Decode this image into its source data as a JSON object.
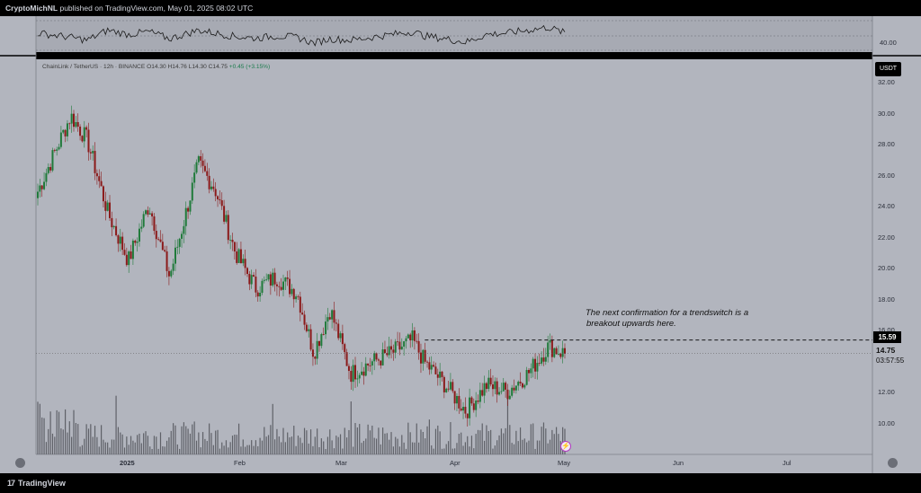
{
  "header": {
    "author": "CryptoMichNL",
    "published_text": "published on TradingView.com, May 01, 2025 08:02 UTC"
  },
  "legend": {
    "symbol": "ChainLink / TetherUS · 12h · BINANCE",
    "open": "O14.30",
    "high": "H14.76",
    "low": "L14.30",
    "close": "C14.75",
    "change": "+0.45 (+3.15%)"
  },
  "annotation": {
    "line1": "The next confirmation for a trendswitch is a",
    "line2": "breakout upwards here."
  },
  "price_scale": {
    "currency": "USDT",
    "labels": [
      "32.00",
      "30.00",
      "28.00",
      "26.00",
      "24.00",
      "22.00",
      "20.00",
      "18.00",
      "16.00",
      "12.00",
      "10.00"
    ],
    "level_tag": "15.59",
    "current_price": "14.75",
    "countdown": "03:57:55"
  },
  "oscillator": {
    "scale_label": "40.00"
  },
  "time_axis": {
    "labels": [
      {
        "text": "2025",
        "bold": true
      },
      {
        "text": "Feb",
        "bold": false
      },
      {
        "text": "Mar",
        "bold": false
      },
      {
        "text": "Apr",
        "bold": false
      },
      {
        "text": "May",
        "bold": false
      },
      {
        "text": "Jun",
        "bold": false
      },
      {
        "text": "Jul",
        "bold": false
      }
    ]
  },
  "footer": {
    "logo_text": "TradingView",
    "logo_mark": "17"
  },
  "colors": {
    "background": "#b2b5be",
    "up_candle": "#1f7a3a",
    "down_candle": "#8b1a1a",
    "volume": "#5f6168",
    "accent": "#000000"
  },
  "chart_data": {
    "type": "candlestick",
    "symbol": "LINK/USDT",
    "timeframe": "12h",
    "ylim": [
      8.5,
      33
    ],
    "resistance_level": 15.59,
    "current_price": 14.75,
    "x": [
      "2024-12-24",
      "2025-01-01",
      "2025-01-05",
      "2025-01-10",
      "2025-01-15",
      "2025-01-20",
      "2025-01-25",
      "2025-02-01",
      "2025-02-05",
      "2025-02-10",
      "2025-02-15",
      "2025-02-20",
      "2025-02-25",
      "2025-03-01",
      "2025-03-05",
      "2025-03-10",
      "2025-03-15",
      "2025-03-20",
      "2025-03-25",
      "2025-03-28",
      "2025-04-02",
      "2025-04-07",
      "2025-04-12",
      "2025-04-17",
      "2025-04-22",
      "2025-04-27",
      "2025-05-01"
    ],
    "close": [
      24.8,
      29.5,
      28.0,
      23.5,
      20.5,
      24.0,
      19.5,
      26.5,
      25.0,
      21.0,
      18.8,
      19.5,
      18.5,
      14.8,
      17.5,
      13.5,
      14.2,
      14.8,
      15.6,
      14.2,
      12.8,
      11.2,
      12.8,
      12.4,
      13.5,
      15.2,
      14.75
    ],
    "oscillator_values": [
      45.0,
      43.5,
      42.5,
      46.0,
      44.5,
      45.5,
      43.0,
      46.0,
      45.0,
      43.8,
      43.2,
      44.0,
      43.5,
      41.5,
      43.0,
      42.5,
      43.5,
      44.5,
      45.5,
      44.0,
      43.0,
      41.8,
      44.5,
      45.0,
      46.0,
      47.0,
      45.0
    ]
  }
}
